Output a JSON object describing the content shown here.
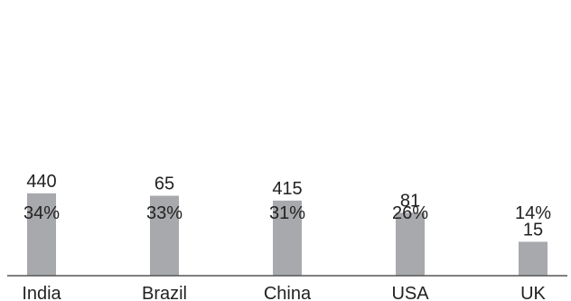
{
  "chart_data": {
    "type": "bar",
    "categories": [
      "India",
      "Brazil",
      "China",
      "USA",
      "UK"
    ],
    "values": [
      440,
      65,
      415,
      81,
      15
    ],
    "value_labels": [
      "440",
      "65",
      "415",
      "81",
      "15"
    ],
    "percent_labels": [
      "34%",
      "33%",
      "31%",
      "26%",
      "14%"
    ],
    "percent_values": [
      34,
      33,
      31,
      26,
      14
    ],
    "title": "",
    "xlabel": "",
    "ylabel": "",
    "ylim": [
      0,
      100
    ],
    "grid": false,
    "legend": "none",
    "colors": {
      "bar": "#a7a9ac",
      "axis": "#555555",
      "text": "#222222"
    }
  }
}
